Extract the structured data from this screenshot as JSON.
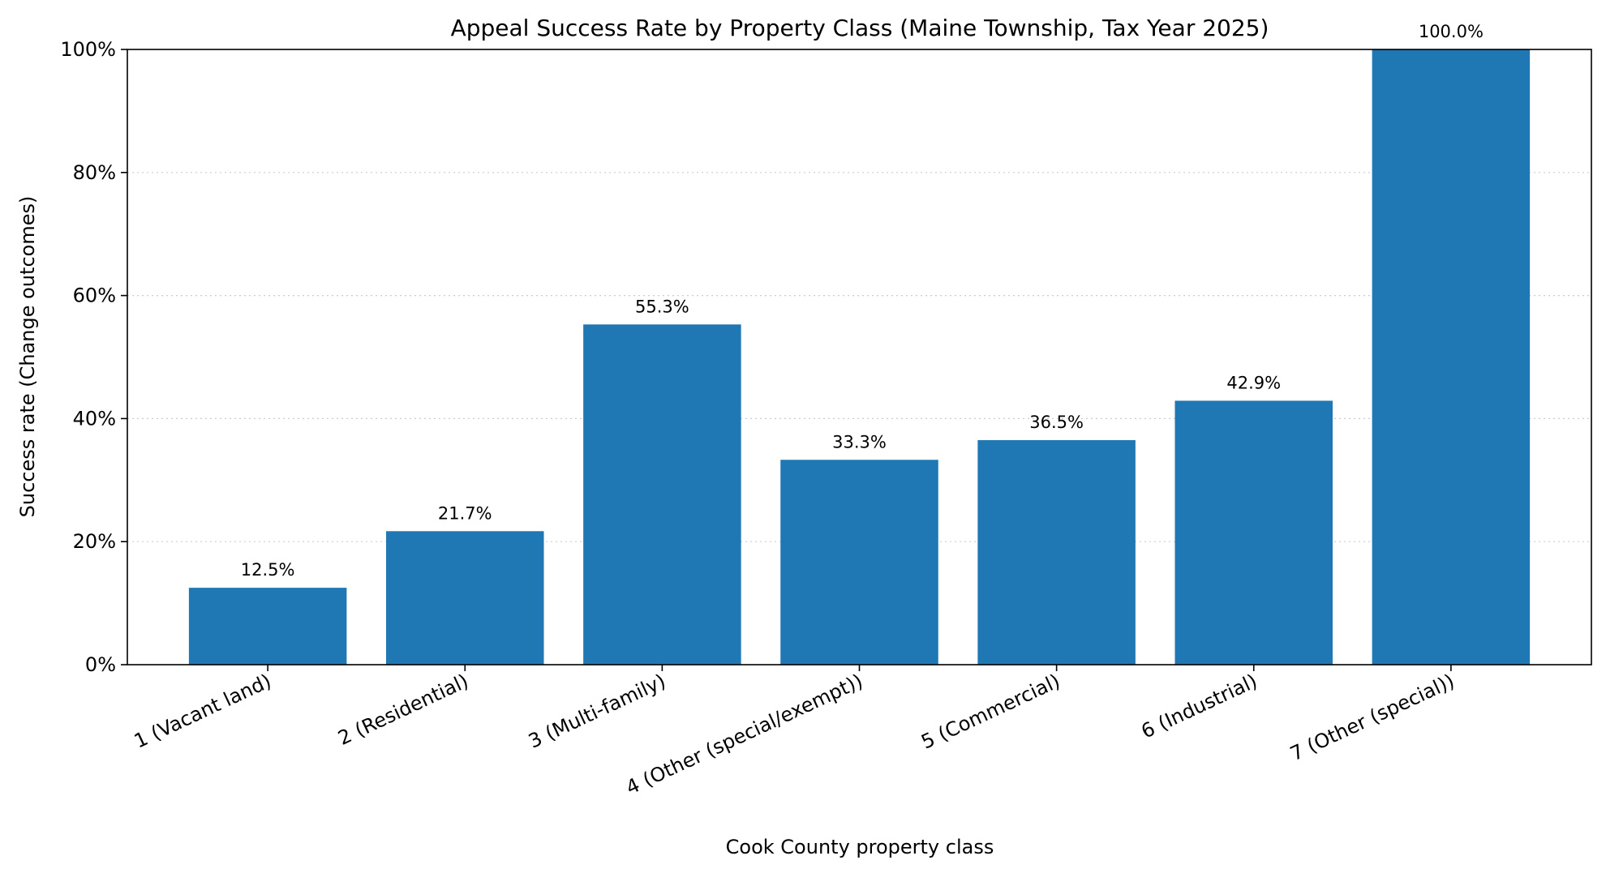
{
  "chart_data": {
    "type": "bar",
    "title": "Appeal Success Rate by Property Class (Maine Township, Tax Year 2025)",
    "xlabel": "Cook County property class",
    "ylabel": "Success rate (Change outcomes)",
    "categories": [
      "1 (Vacant land)",
      "2 (Residential)",
      "3 (Multi-family)",
      "4 (Other (special/exempt))",
      "5 (Commercial)",
      "6 (Industrial)",
      "7 (Other (special))"
    ],
    "values": [
      12.5,
      21.7,
      55.3,
      33.3,
      36.5,
      42.9,
      100.0
    ],
    "data_labels": [
      "12.5%",
      "21.7%",
      "55.3%",
      "33.3%",
      "36.5%",
      "42.9%",
      "100.0%"
    ],
    "ylim": [
      0,
      100
    ],
    "yticks": [
      0,
      20,
      40,
      60,
      80,
      100
    ],
    "ytick_labels": [
      "0%",
      "20%",
      "40%",
      "60%",
      "80%",
      "100%"
    ],
    "grid": "y-dotted",
    "bar_color": "#1f77b4"
  }
}
